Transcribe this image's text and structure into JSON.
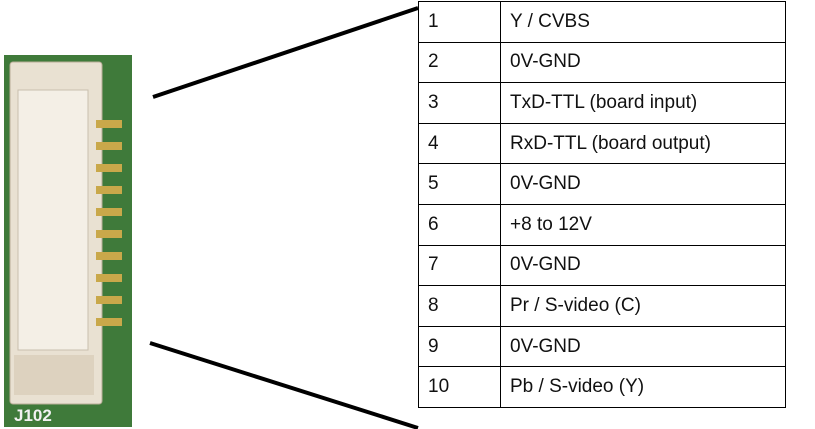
{
  "connector": {
    "label": "J102"
  },
  "table": {
    "rows": [
      [
        "1",
        "Y / CVBS"
      ],
      [
        "2",
        "0V-GND"
      ],
      [
        "3",
        "TxD-TTL (board input)"
      ],
      [
        "4",
        "RxD-TTL (board output)"
      ],
      [
        "5",
        "0V-GND"
      ],
      [
        "6",
        "+8 to 12V"
      ],
      [
        "7",
        "0V-GND"
      ],
      [
        "8",
        "Pr / S-video (C)"
      ],
      [
        "9",
        "0V-GND"
      ],
      [
        "10",
        "Pb / S-video (Y)"
      ]
    ]
  }
}
